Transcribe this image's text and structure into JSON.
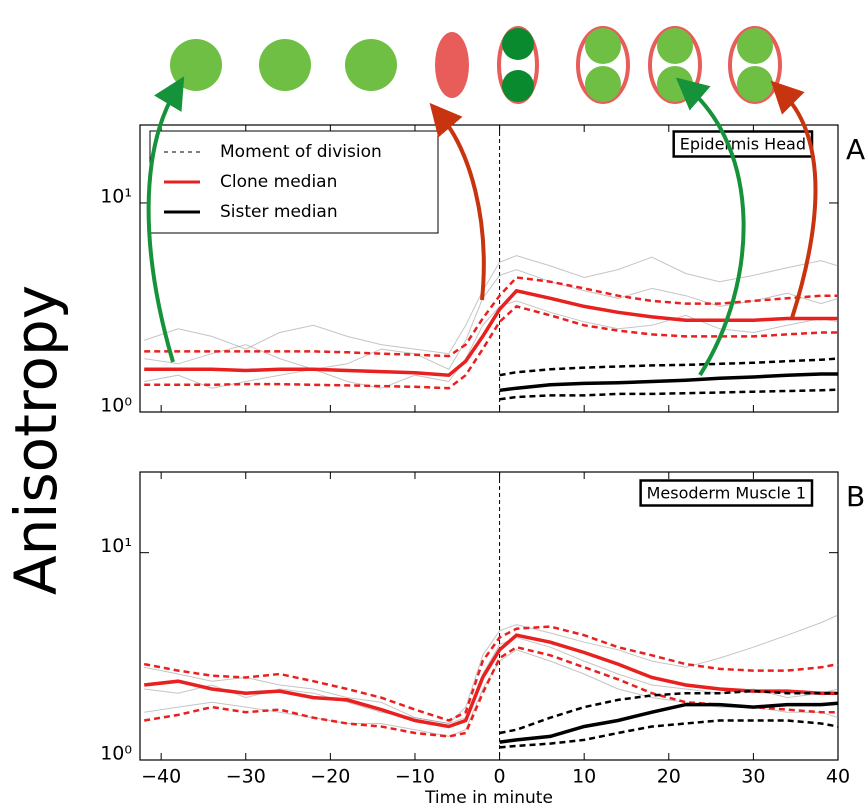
{
  "ylabel": "Anisotropy",
  "xlabel": "Time in minute",
  "chart_data": [
    {
      "type": "line",
      "panel": "A",
      "annotation": "Epidermis Head",
      "log_y": true,
      "xlim": [
        -42.5,
        40
      ],
      "xticks": [
        -40,
        -30,
        -20,
        -10,
        0,
        10,
        20,
        30,
        40
      ],
      "xtick_labels": false,
      "ylim": [
        1,
        23.6
      ],
      "yticks": [
        {
          "value": 1,
          "label": "10⁰"
        },
        {
          "value": 10,
          "label": "10¹"
        }
      ],
      "vline": {
        "name": "Moment of division",
        "x": 0,
        "color": "#000000"
      },
      "legend": "upper left",
      "x": [
        -42,
        -38,
        -34,
        -30,
        -26,
        -22,
        -18,
        -14,
        -10,
        -6,
        -4,
        -2,
        0,
        2,
        6,
        10,
        14,
        18,
        22,
        26,
        30,
        34,
        38,
        40
      ],
      "series": [
        {
          "style": "trace",
          "color": "#8c8c8c",
          "values": [
            1.8,
            1.7,
            1.9,
            2.1,
            1.8,
            1.6,
            1.7,
            2.0,
            1.9,
            1.6,
            2.2,
            3.5,
            4.5,
            4.8,
            4.2,
            3.8,
            3.5,
            3.9,
            3.6,
            3.2,
            3.4,
            3.7,
            3.3,
            3.5
          ]
        },
        {
          "style": "trace",
          "color": "#8c8c8c",
          "values": [
            1.4,
            1.5,
            1.3,
            1.4,
            1.5,
            1.6,
            1.4,
            1.3,
            1.5,
            1.4,
            1.8,
            2.6,
            3.2,
            3.4,
            3.0,
            2.7,
            2.5,
            2.6,
            2.9,
            2.5,
            2.4,
            2.6,
            2.8,
            2.7
          ]
        },
        {
          "style": "trace",
          "color": "#8c8c8c",
          "values": [
            2.2,
            2.5,
            2.3,
            2.0,
            2.4,
            2.6,
            2.3,
            2.1,
            2.0,
            1.9,
            2.6,
            3.8,
            5.2,
            5.6,
            5.0,
            4.4,
            4.8,
            5.5,
            4.6,
            4.2,
            4.5,
            4.9,
            5.3,
            5.0
          ]
        },
        {
          "style": "dashed",
          "color": "#e8201f",
          "values": [
            1.95,
            1.95,
            1.95,
            1.95,
            1.95,
            1.95,
            1.93,
            1.9,
            1.88,
            1.85,
            2.1,
            2.8,
            3.6,
            4.4,
            4.2,
            3.9,
            3.6,
            3.4,
            3.3,
            3.3,
            3.4,
            3.5,
            3.6,
            3.6
          ]
        },
        {
          "style": "dashed",
          "color": "#e8201f",
          "values": [
            1.35,
            1.35,
            1.35,
            1.36,
            1.36,
            1.35,
            1.34,
            1.33,
            1.32,
            1.3,
            1.5,
            2.0,
            2.7,
            3.2,
            2.9,
            2.6,
            2.45,
            2.35,
            2.3,
            2.3,
            2.3,
            2.35,
            2.4,
            2.4
          ]
        },
        {
          "name": "Clone median",
          "style": "solid",
          "color": "#e8201f",
          "values": [
            1.6,
            1.6,
            1.6,
            1.58,
            1.6,
            1.6,
            1.58,
            1.56,
            1.54,
            1.5,
            1.75,
            2.3,
            3.1,
            3.8,
            3.5,
            3.2,
            3.0,
            2.85,
            2.75,
            2.75,
            2.75,
            2.8,
            2.8,
            2.8
          ]
        },
        {
          "style": "dashed",
          "color": "#000000",
          "values": [
            null,
            null,
            null,
            null,
            null,
            null,
            null,
            null,
            null,
            null,
            null,
            null,
            1.5,
            1.55,
            1.6,
            1.63,
            1.65,
            1.67,
            1.68,
            1.7,
            1.72,
            1.75,
            1.78,
            1.8
          ]
        },
        {
          "style": "dashed",
          "color": "#000000",
          "values": [
            null,
            null,
            null,
            null,
            null,
            null,
            null,
            null,
            null,
            null,
            null,
            null,
            1.15,
            1.18,
            1.2,
            1.2,
            1.22,
            1.22,
            1.23,
            1.24,
            1.25,
            1.26,
            1.27,
            1.28
          ]
        },
        {
          "name": "Sister median",
          "style": "solid",
          "color": "#000000",
          "values": [
            null,
            null,
            null,
            null,
            null,
            null,
            null,
            null,
            null,
            null,
            null,
            null,
            1.27,
            1.3,
            1.35,
            1.37,
            1.38,
            1.4,
            1.42,
            1.45,
            1.47,
            1.5,
            1.52,
            1.52
          ]
        }
      ]
    },
    {
      "type": "line",
      "panel": "B",
      "annotation": "Mesoderm Muscle 1",
      "log_y": true,
      "xlim": [
        -42.5,
        40
      ],
      "xticks": [
        {
          "value": -40,
          "label": "−40"
        },
        {
          "value": -30,
          "label": "−30"
        },
        {
          "value": -20,
          "label": "−20"
        },
        {
          "value": -10,
          "label": "−10"
        },
        0,
        10,
        20,
        30,
        40
      ],
      "xtick_labels": true,
      "ylim": [
        1,
        24.5
      ],
      "yticks": [
        {
          "value": 1,
          "label": "10⁰"
        },
        {
          "value": 10,
          "label": "10¹"
        }
      ],
      "vline": {
        "x": 0,
        "color": "#000000"
      },
      "x": [
        -42,
        -38,
        -34,
        -30,
        -26,
        -22,
        -18,
        -14,
        -10,
        -6,
        -4,
        -2,
        0,
        2,
        6,
        10,
        14,
        18,
        22,
        26,
        30,
        34,
        38,
        40
      ],
      "series": [
        {
          "style": "trace",
          "color": "#8c8c8c",
          "values": [
            2.8,
            2.6,
            2.4,
            2.5,
            2.3,
            2.2,
            2.0,
            1.9,
            1.6,
            1.5,
            1.8,
            3.2,
            4.2,
            4.5,
            4.1,
            3.7,
            3.4,
            3.0,
            2.8,
            3.1,
            3.5,
            4.0,
            4.6,
            5.0
          ]
        },
        {
          "style": "trace",
          "color": "#8c8c8c",
          "values": [
            1.7,
            1.8,
            1.9,
            1.8,
            1.7,
            1.6,
            1.5,
            1.5,
            1.4,
            1.3,
            1.4,
            2.2,
            3.0,
            3.4,
            3.0,
            2.6,
            2.2,
            2.0,
            1.9,
            1.8,
            1.8,
            1.7,
            1.7,
            1.6
          ]
        },
        {
          "style": "trace",
          "color": "#8c8c8c",
          "values": [
            2.2,
            2.1,
            2.3,
            2.0,
            2.2,
            2.1,
            1.9,
            1.7,
            1.6,
            1.5,
            1.6,
            2.6,
            3.6,
            3.9,
            3.5,
            3.0,
            2.6,
            2.3,
            2.2,
            2.1,
            2.2,
            2.0,
            2.1,
            2.2
          ]
        },
        {
          "style": "dashed",
          "color": "#e8201f",
          "values": [
            2.9,
            2.7,
            2.55,
            2.5,
            2.6,
            2.4,
            2.2,
            2.0,
            1.75,
            1.55,
            1.7,
            3.0,
            3.9,
            4.3,
            4.4,
            4.0,
            3.5,
            3.2,
            2.9,
            2.75,
            2.7,
            2.7,
            2.8,
            2.9
          ]
        },
        {
          "style": "dashed",
          "color": "#e8201f",
          "values": [
            1.55,
            1.65,
            1.8,
            1.7,
            1.75,
            1.6,
            1.5,
            1.45,
            1.35,
            1.3,
            1.35,
            2.1,
            3.1,
            3.5,
            3.2,
            2.8,
            2.45,
            2.1,
            1.9,
            1.85,
            1.8,
            1.75,
            1.7,
            1.7
          ]
        },
        {
          "style": "solid",
          "color": "#e8201f",
          "values": [
            2.3,
            2.4,
            2.2,
            2.1,
            2.15,
            2.0,
            1.95,
            1.75,
            1.55,
            1.45,
            1.55,
            2.5,
            3.4,
            4.0,
            3.7,
            3.3,
            2.9,
            2.5,
            2.3,
            2.2,
            2.15,
            2.15,
            2.1,
            2.1
          ]
        },
        {
          "style": "dashed",
          "color": "#000000",
          "values": [
            null,
            null,
            null,
            null,
            null,
            null,
            null,
            null,
            null,
            null,
            null,
            null,
            1.35,
            1.4,
            1.6,
            1.8,
            1.95,
            2.05,
            2.1,
            2.1,
            2.15,
            2.1,
            2.1,
            2.1
          ]
        },
        {
          "style": "dashed",
          "color": "#000000",
          "values": [
            null,
            null,
            null,
            null,
            null,
            null,
            null,
            null,
            null,
            null,
            null,
            null,
            1.15,
            1.17,
            1.2,
            1.25,
            1.35,
            1.45,
            1.5,
            1.55,
            1.55,
            1.55,
            1.5,
            1.45
          ]
        },
        {
          "style": "solid",
          "color": "#000000",
          "values": [
            null,
            null,
            null,
            null,
            null,
            null,
            null,
            null,
            null,
            null,
            null,
            null,
            1.22,
            1.25,
            1.3,
            1.45,
            1.55,
            1.7,
            1.85,
            1.85,
            1.8,
            1.85,
            1.85,
            1.88
          ]
        }
      ]
    }
  ]
}
